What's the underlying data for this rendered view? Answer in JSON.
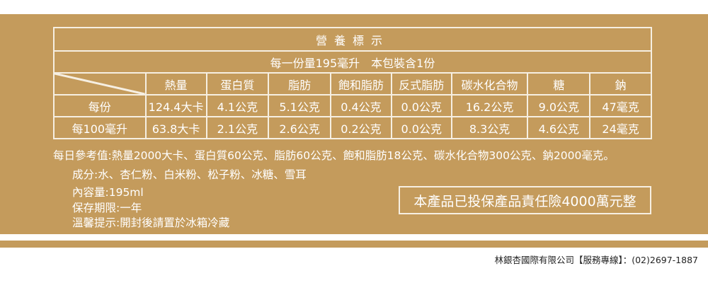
{
  "colors": {
    "gold": "#c49b5c",
    "line": "#f6efe2"
  },
  "label": {
    "title": "營養標示",
    "serving": "每一份量195毫升　本包裝含1份",
    "headers": [
      "熱量",
      "蛋白質",
      "脂肪",
      "飽和脂肪",
      "反式脂肪",
      "碳水化合物",
      "糖",
      "鈉"
    ],
    "rows": [
      {
        "label": "每份",
        "values": [
          "124.4大卡",
          "4.1公克",
          "5.1公克",
          "0.4公克",
          "0.0公克",
          "16.2公克",
          "9.0公克",
          "47毫克"
        ]
      },
      {
        "label": "每100毫升",
        "values": [
          "63.8大卡",
          "2.1公克",
          "2.6公克",
          "0.2公克",
          "0.0公克",
          "8.3公克",
          "4.6公克",
          "24毫克"
        ]
      }
    ]
  },
  "daily_reference": "每日參考值:熱量2000大卡、蛋白質60公克、脂肪60公克、飽和脂肪18公克、碳水化合物300公克、鈉2000毫克。",
  "info": {
    "ingredients": "成分:水、杏仁粉、白米粉、松子粉、冰糖、雪耳",
    "volume": "內容量:195ml",
    "shelf_life": "保存期限:一年",
    "tip": "溫馨提示:開封後請置於冰箱冷藏"
  },
  "insurance": "本產品已投保產品責任險4000萬元整",
  "footer": "林銀杏國際有限公司【服務專線】：(02)2697-1887"
}
